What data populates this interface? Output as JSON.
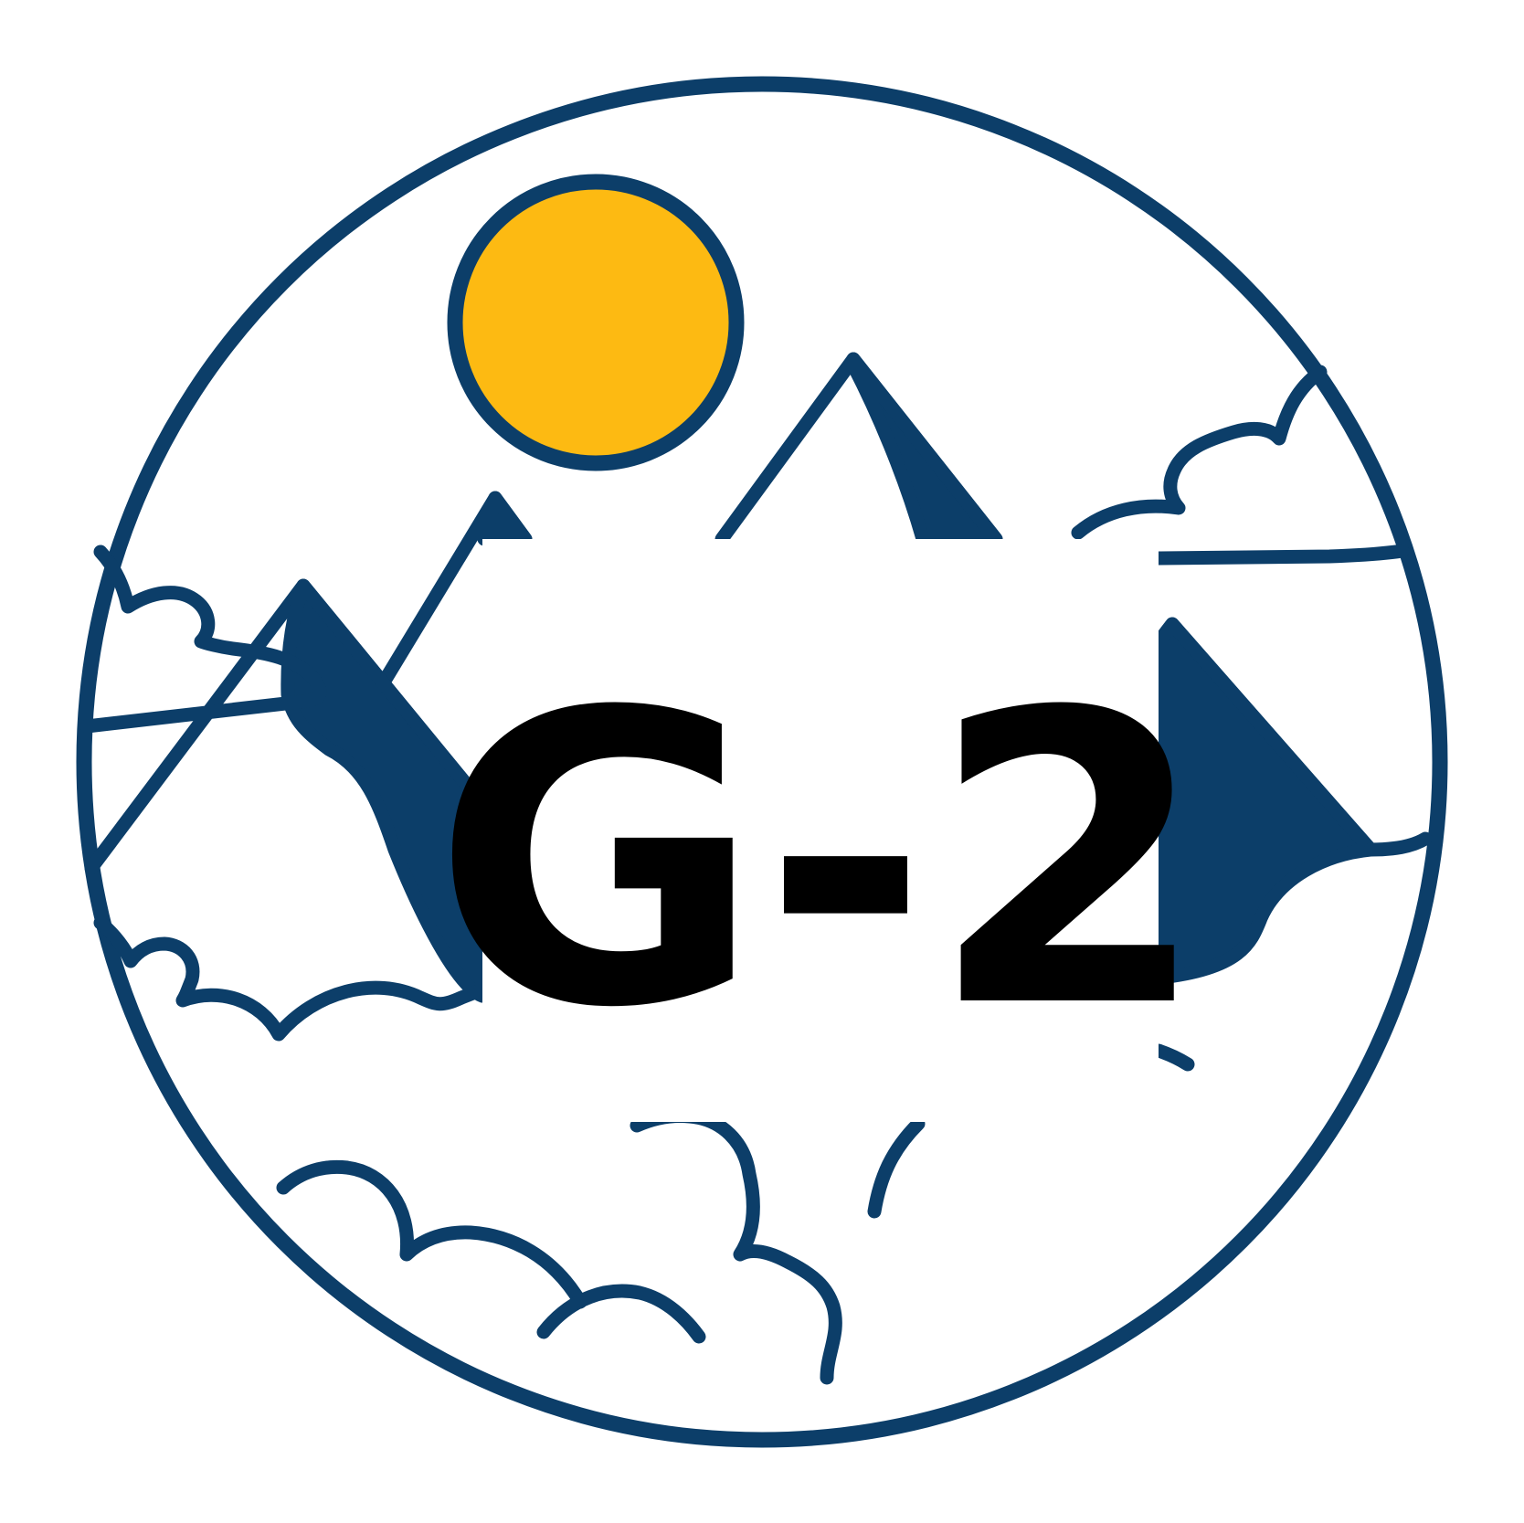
{
  "badge": {
    "label": "G-2",
    "icons": {
      "sun": "sun-icon",
      "mountains": "mountains-icon",
      "clouds": "clouds-icon",
      "border": "circle-border"
    },
    "colors": {
      "outline": "#0C3E69",
      "sun_fill": "#FDBA12",
      "background": "#FFFFFF",
      "label": "#000000"
    }
  }
}
